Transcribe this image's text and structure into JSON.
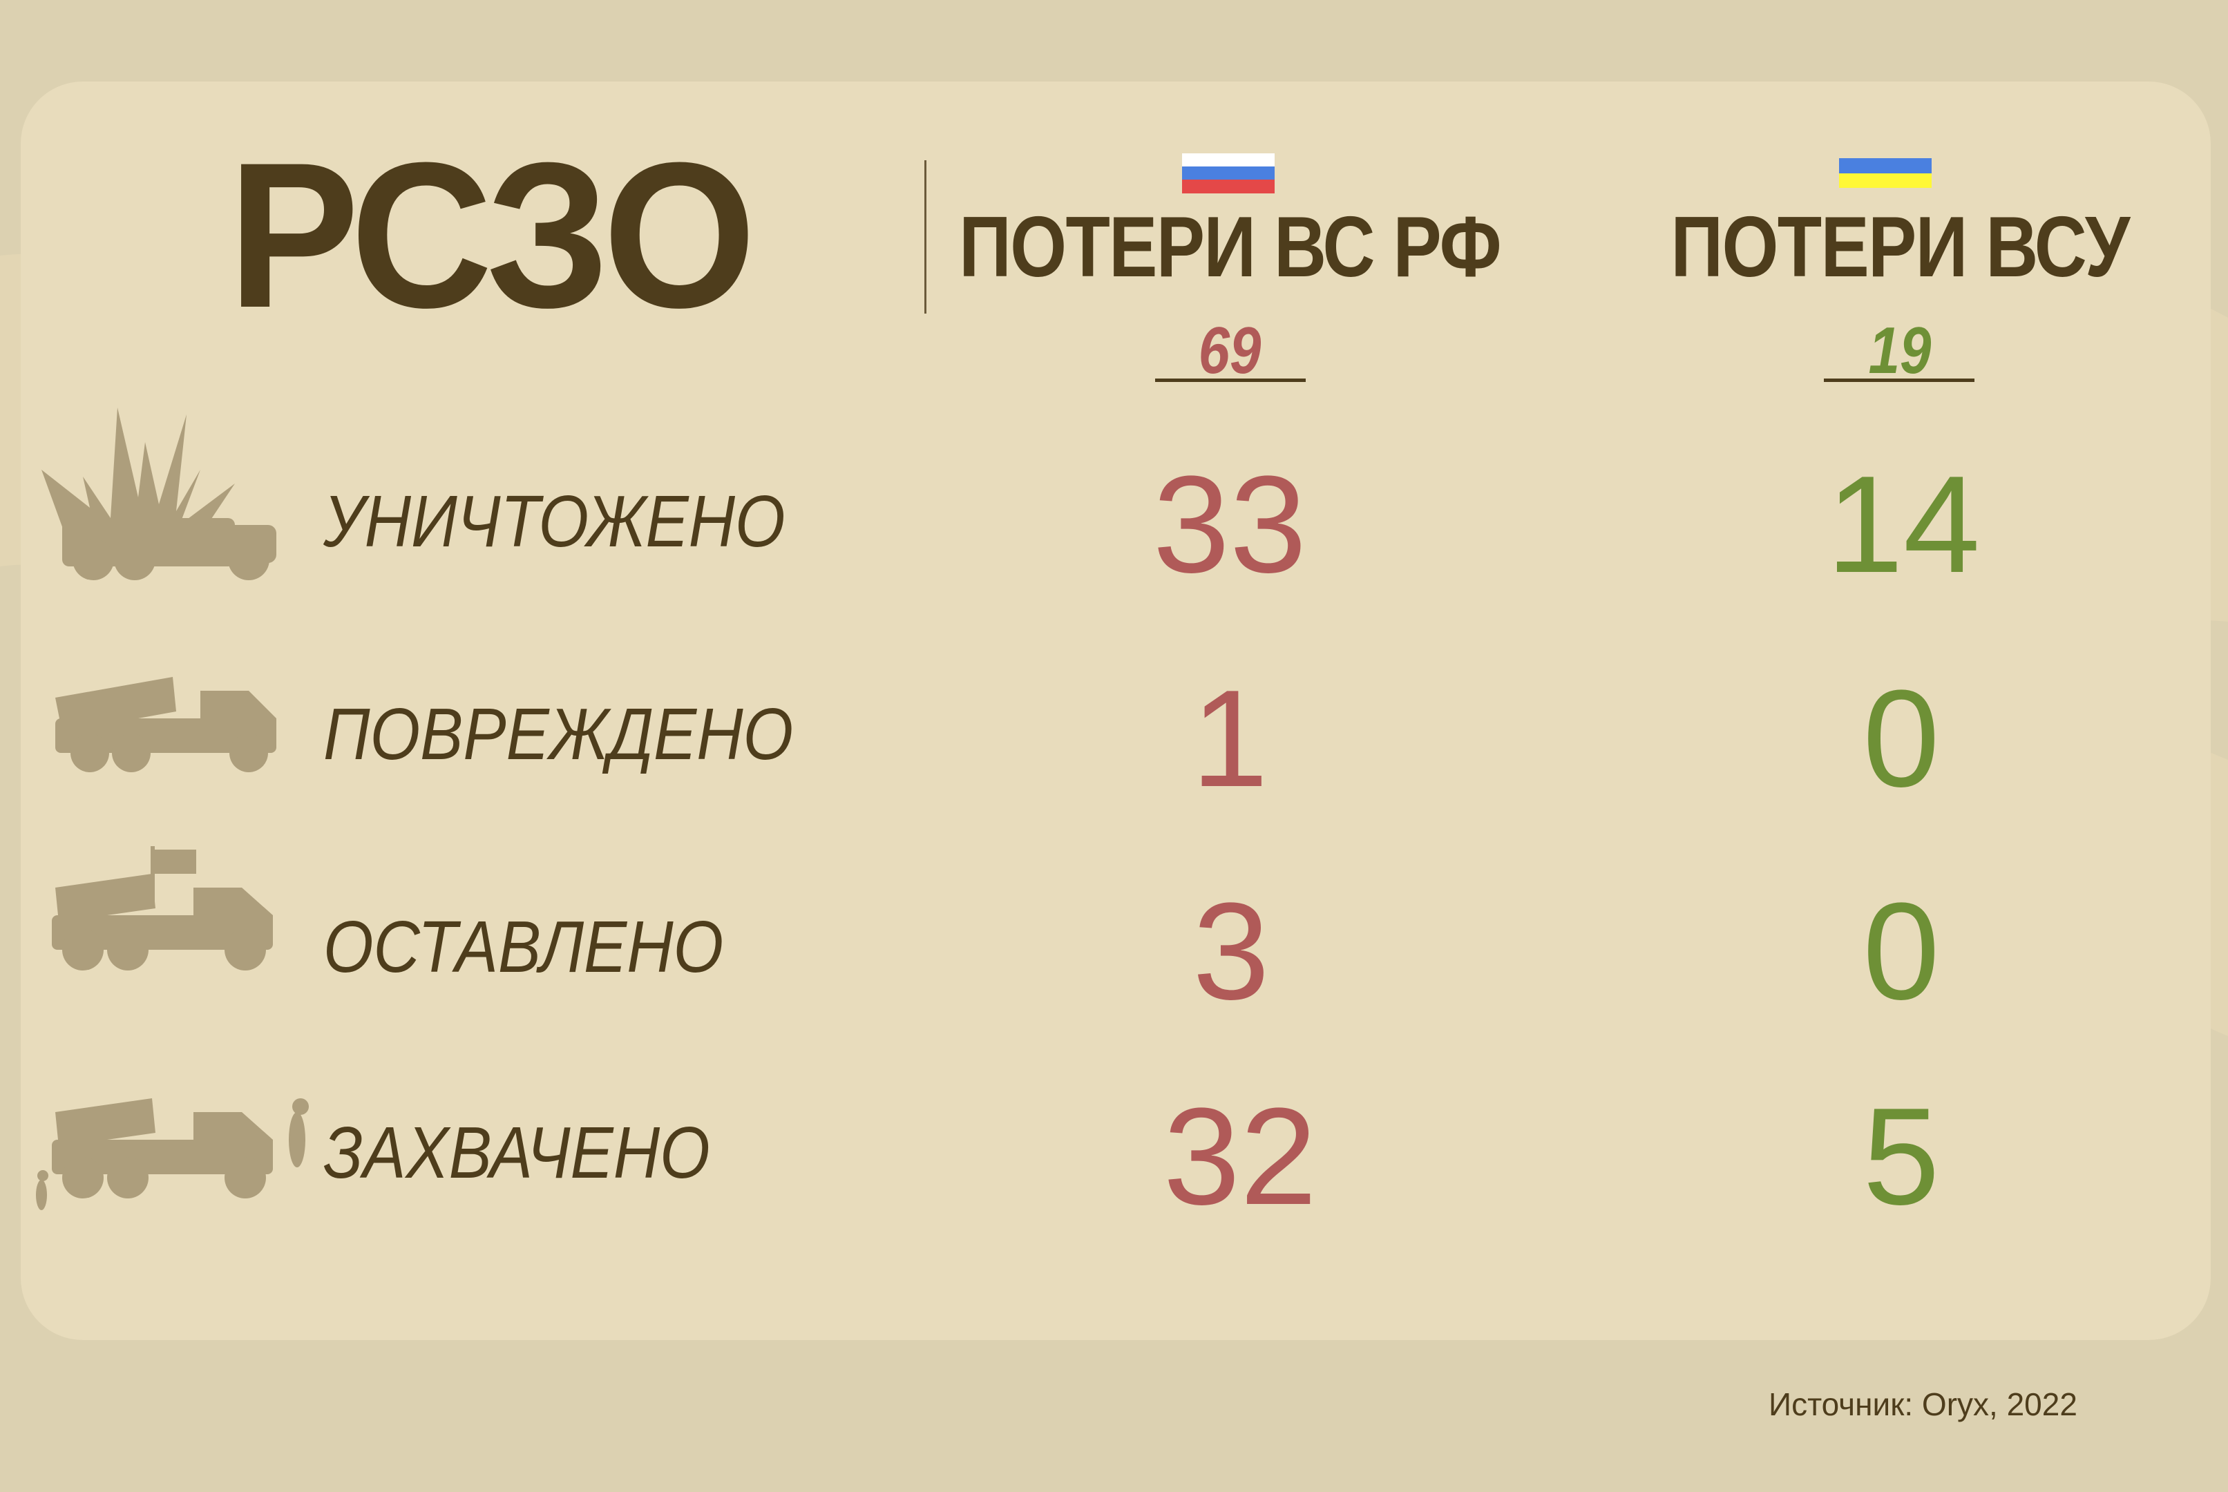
{
  "title": "РСЗО",
  "colors": {
    "text": "#4e3d1c",
    "russia": "#b05a58",
    "ukraine": "#6e9036",
    "icon": "#ad9e7c",
    "panel": "#e8dcbc",
    "background": "#dcd1b1"
  },
  "columns": [
    {
      "heading": "ПОТЕРИ ВС РФ",
      "flag": "russia-flag-icon",
      "total": "69"
    },
    {
      "heading": "ПОТЕРИ ВСУ",
      "flag": "ukraine-flag-icon",
      "total": "19"
    }
  ],
  "rows": [
    {
      "label": "УНИЧТОЖЕНО",
      "icon": "destroyed-mlrs-icon",
      "russia": "33",
      "ukraine": "14"
    },
    {
      "label": "ПОВРЕЖДЕНО",
      "icon": "damaged-mlrs-icon",
      "russia": "1",
      "ukraine": "0"
    },
    {
      "label": "ОСТАВЛЕНО",
      "icon": "abandoned-mlrs-icon",
      "russia": "3",
      "ukraine": "0"
    },
    {
      "label": "ЗАХВАЧЕНО",
      "icon": "captured-mlrs-icon",
      "russia": "32",
      "ukraine": "5"
    }
  ],
  "source": "Источник: Oryx, 2022"
}
